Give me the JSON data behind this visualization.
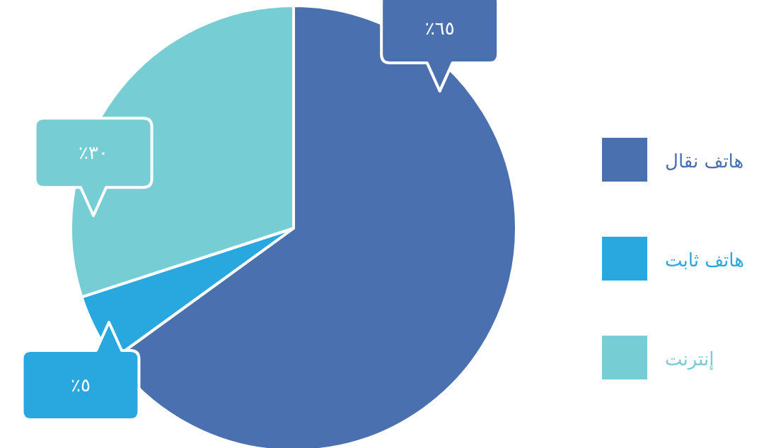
{
  "chart_data": {
    "type": "pie",
    "categories": [
      "هاتف نقال",
      "هاتف ثابت",
      "إنترنت"
    ],
    "values": [
      65,
      5,
      30
    ],
    "colors": [
      "#4a70b0",
      "#29a8e0",
      "#76cdd4"
    ],
    "value_labels": [
      "٦٥٪",
      "٥٪",
      "٣٠٪"
    ],
    "legend": "right"
  }
}
